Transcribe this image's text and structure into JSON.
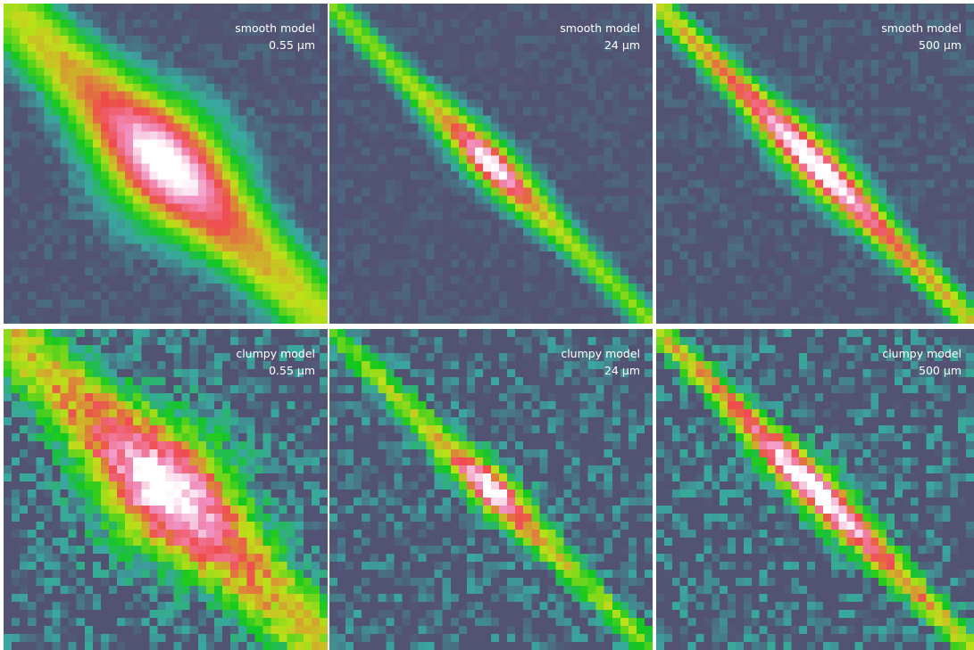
{
  "panels": [
    {
      "model": "smooth model",
      "wavelength": "0.55 µm"
    },
    {
      "model": "smooth model",
      "wavelength": "24 µm"
    },
    {
      "model": "smooth model",
      "wavelength": "500 µm"
    },
    {
      "model": "clumpy model",
      "wavelength": "0.55 µm"
    },
    {
      "model": "clumpy model",
      "wavelength": "24 µm"
    },
    {
      "model": "clumpy model",
      "wavelength": "500 µm"
    }
  ],
  "colors": {
    "background": "#525373",
    "colormap": [
      "#525373",
      "#3aa7a0",
      "#13c81f",
      "#bfe019",
      "#ef4b4d",
      "#f08fbf",
      "#ffffff"
    ]
  }
}
